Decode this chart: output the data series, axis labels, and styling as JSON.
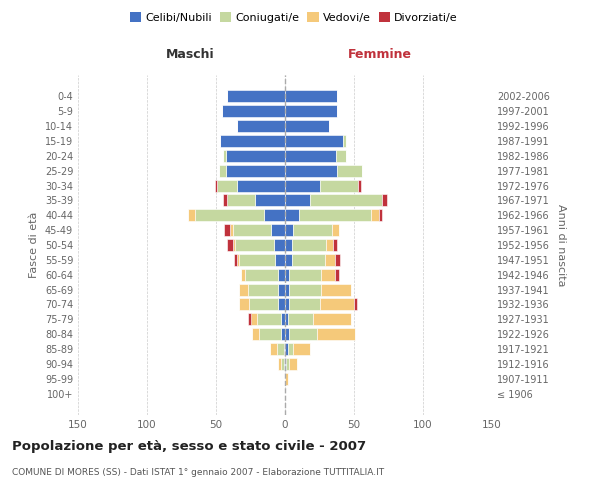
{
  "age_groups": [
    "100+",
    "95-99",
    "90-94",
    "85-89",
    "80-84",
    "75-79",
    "70-74",
    "65-69",
    "60-64",
    "55-59",
    "50-54",
    "45-49",
    "40-44",
    "35-39",
    "30-34",
    "25-29",
    "20-24",
    "15-19",
    "10-14",
    "5-9",
    "0-4"
  ],
  "birth_years": [
    "≤ 1906",
    "1907-1911",
    "1912-1916",
    "1917-1921",
    "1922-1926",
    "1927-1931",
    "1932-1936",
    "1937-1941",
    "1942-1946",
    "1947-1951",
    "1952-1956",
    "1957-1961",
    "1962-1966",
    "1967-1971",
    "1972-1976",
    "1977-1981",
    "1982-1986",
    "1987-1991",
    "1992-1996",
    "1997-2001",
    "2002-2006"
  ],
  "males": {
    "celibe": [
      0,
      0,
      1,
      1,
      3,
      3,
      5,
      5,
      5,
      7,
      8,
      10,
      15,
      22,
      35,
      43,
      43,
      47,
      35,
      46,
      42
    ],
    "coniugato": [
      0,
      0,
      2,
      5,
      16,
      17,
      21,
      22,
      24,
      26,
      28,
      28,
      50,
      20,
      14,
      5,
      2,
      0,
      0,
      0,
      0
    ],
    "vedovo": [
      0,
      0,
      2,
      5,
      5,
      5,
      7,
      6,
      3,
      2,
      2,
      2,
      5,
      0,
      0,
      0,
      0,
      0,
      0,
      0,
      0
    ],
    "divorziato": [
      0,
      0,
      0,
      0,
      0,
      2,
      0,
      0,
      0,
      2,
      4,
      4,
      0,
      3,
      2,
      0,
      0,
      0,
      0,
      0,
      0
    ]
  },
  "females": {
    "nubile": [
      0,
      0,
      1,
      2,
      3,
      2,
      3,
      3,
      3,
      5,
      5,
      6,
      10,
      18,
      25,
      38,
      37,
      42,
      32,
      38,
      38
    ],
    "coniugata": [
      0,
      0,
      2,
      4,
      20,
      18,
      22,
      23,
      23,
      24,
      25,
      28,
      52,
      52,
      28,
      18,
      7,
      2,
      0,
      0,
      0
    ],
    "vedova": [
      0,
      2,
      6,
      12,
      28,
      28,
      25,
      22,
      10,
      7,
      5,
      5,
      6,
      0,
      0,
      0,
      0,
      0,
      0,
      0,
      0
    ],
    "divorziata": [
      0,
      0,
      0,
      0,
      0,
      0,
      2,
      0,
      3,
      4,
      3,
      0,
      2,
      4,
      2,
      0,
      0,
      0,
      0,
      0,
      0
    ]
  },
  "colors": {
    "celibe": "#4472C4",
    "coniugato": "#C5D8A0",
    "vedovo": "#F5C97A",
    "divorziato": "#C0323C"
  },
  "xlim": 150,
  "title": "Popolazione per età, sesso e stato civile - 2007",
  "subtitle": "COMUNE DI MORES (SS) - Dati ISTAT 1° gennaio 2007 - Elaborazione TUTTITALIA.IT",
  "ylabel_left": "Fasce di età",
  "ylabel_right": "Anni di nascita",
  "header_maschi": "Maschi",
  "header_femmine": "Femmine",
  "legend_labels": [
    "Celibi/Nubili",
    "Coniugati/e",
    "Vedovi/e",
    "Divorziati/e"
  ],
  "bg_color": "#FFFFFF",
  "grid_color": "#CCCCCC"
}
